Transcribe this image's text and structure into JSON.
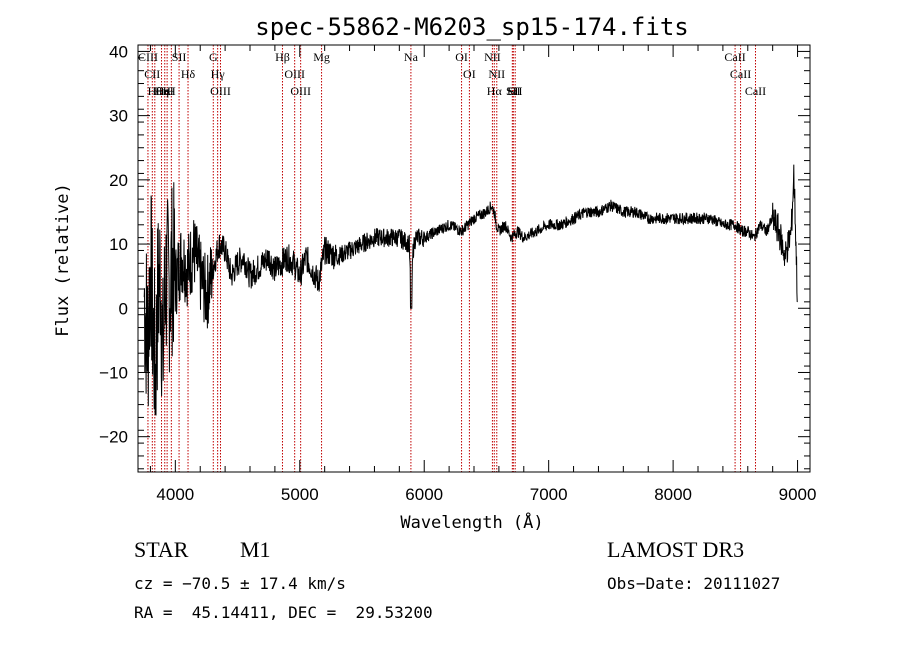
{
  "chart_data": {
    "type": "line",
    "title": "spec-55862-M6203_sp15-174.fits",
    "xlabel": "Wavelength (Å)",
    "ylabel": "Flux (relative)",
    "xlim": [
      3700,
      9100
    ],
    "ylim": [
      -25.5,
      41
    ],
    "xticks": [
      4000,
      5000,
      6000,
      7000,
      8000,
      9000
    ],
    "yticks": [
      -20,
      -10,
      0,
      10,
      20,
      30,
      40
    ],
    "series": [
      {
        "name": "flux",
        "x": [
          3750,
          3780,
          3800,
          3820,
          3840,
          3860,
          3880,
          3900,
          3920,
          3950,
          3980,
          4000,
          4050,
          4100,
          4150,
          4200,
          4250,
          4300,
          4350,
          4400,
          4450,
          4500,
          4550,
          4600,
          4650,
          4700,
          4750,
          4800,
          4850,
          4900,
          4950,
          5000,
          5050,
          5100,
          5150,
          5200,
          5300,
          5400,
          5500,
          5600,
          5700,
          5800,
          5880,
          5895,
          5910,
          5930,
          6000,
          6100,
          6200,
          6300,
          6400,
          6500,
          6540,
          6563,
          6580,
          6600,
          6650,
          6700,
          6750,
          6800,
          6900,
          7000,
          7100,
          7200,
          7300,
          7400,
          7500,
          7600,
          7700,
          7800,
          7900,
          8000,
          8100,
          8200,
          8300,
          8400,
          8500,
          8550,
          8600,
          8650,
          8700,
          8750,
          8800,
          8850,
          8900,
          8950,
          8970,
          8980,
          9000
        ],
        "y": [
          2,
          -5,
          8,
          -3,
          -10,
          2,
          6,
          -8,
          5,
          3,
          7,
          4,
          8,
          6,
          9,
          5,
          2,
          6,
          10,
          9,
          5,
          7,
          8,
          5,
          6,
          7,
          8,
          6,
          7,
          8,
          7,
          5,
          8,
          6,
          4,
          9,
          8,
          9,
          10,
          11,
          11,
          11,
          10,
          0,
          9,
          11,
          11,
          12,
          13,
          12,
          14,
          15,
          16,
          15,
          13,
          12,
          13,
          11,
          12,
          11,
          12,
          13,
          13,
          14,
          15,
          15,
          16,
          15,
          15,
          14,
          14,
          14,
          14,
          14,
          14,
          13,
          13,
          12,
          12,
          11,
          13,
          12,
          14,
          12,
          8,
          12,
          21,
          15,
          1
        ]
      }
    ],
    "lines": [
      {
        "name": "CIII",
        "wavelength": 3780
      },
      {
        "name": "CII",
        "wavelength": 3815
      },
      {
        "name": "Hθ",
        "wavelength": 3835
      },
      {
        "name": "Hη",
        "wavelength": 3889
      },
      {
        "name": "HeI",
        "wavelength": 3915
      },
      {
        "name": "K",
        "wavelength": 3934
      },
      {
        "name": "H",
        "wavelength": 3968
      },
      {
        "name": "SII",
        "wavelength": 4030
      },
      {
        "name": "Hδ",
        "wavelength": 4102
      },
      {
        "name": "G",
        "wavelength": 4305
      },
      {
        "name": "Hγ",
        "wavelength": 4340
      },
      {
        "name": "OIII",
        "wavelength": 4363
      },
      {
        "name": "Hβ",
        "wavelength": 4861
      },
      {
        "name": "OIII",
        "wavelength": 4959
      },
      {
        "name": "OIII",
        "wavelength": 5007
      },
      {
        "name": "Mg",
        "wavelength": 5175
      },
      {
        "name": "Na",
        "wavelength": 5893
      },
      {
        "name": "OI",
        "wavelength": 6300
      },
      {
        "name": "OI",
        "wavelength": 6363
      },
      {
        "name": "NII",
        "wavelength": 6548
      },
      {
        "name": "Hα",
        "wavelength": 6563
      },
      {
        "name": "NII",
        "wavelength": 6583
      },
      {
        "name": "Li",
        "wavelength": 6708
      },
      {
        "name": "SII",
        "wavelength": 6716
      },
      {
        "name": "SII",
        "wavelength": 6731
      },
      {
        "name": "CaII",
        "wavelength": 8498
      },
      {
        "name": "CaII",
        "wavelength": 8542
      },
      {
        "name": "CaII",
        "wavelength": 8662
      }
    ]
  },
  "info": {
    "class_label": "STAR",
    "subclass": "M1",
    "survey": "LAMOST DR3",
    "redshift": "cz = −70.5 ± 17.4 km/s",
    "obs_date": "Obs−Date: 20111027",
    "coords": "RA =  45.14411, DEC =  29.53200"
  },
  "colors": {
    "line_marker": "#c00000",
    "spectrum": "#000000",
    "axes": "#000000"
  }
}
